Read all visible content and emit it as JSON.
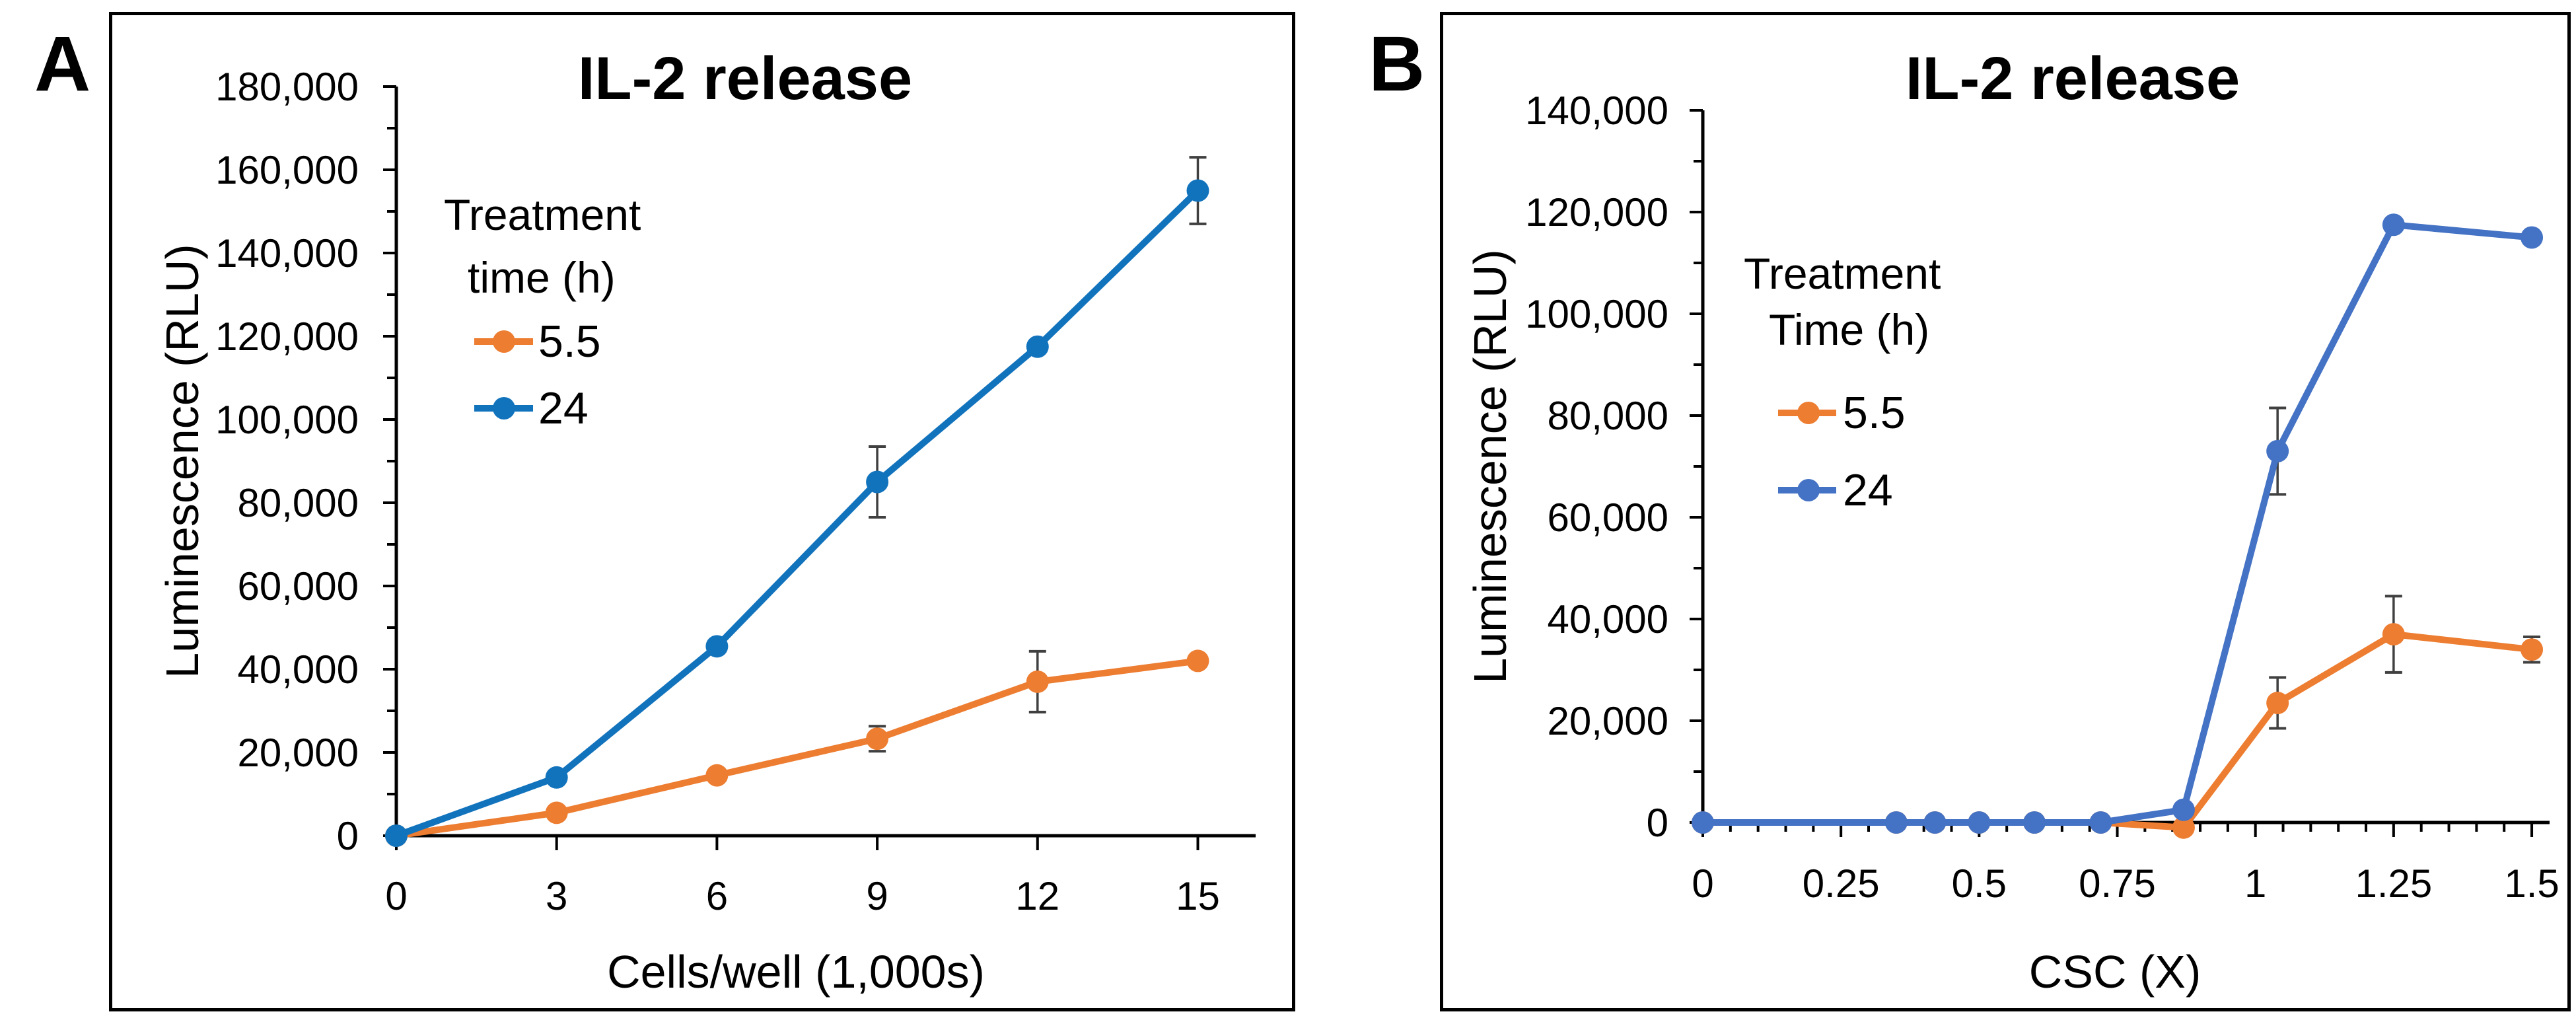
{
  "figure": {
    "background": "#ffffff",
    "panels": [
      {
        "letter": "A"
      },
      {
        "letter": "B"
      }
    ]
  },
  "chart_data": [
    {
      "type": "line",
      "panel": "A",
      "title": "IL-2 release",
      "xlabel": "Cells/well (1,000s)",
      "ylabel": "Luminescence (RLU)",
      "xlim": [
        0,
        16
      ],
      "ylim": [
        0,
        180000
      ],
      "grid": false,
      "xticks": [
        0,
        3,
        6,
        9,
        12,
        15
      ],
      "xtick_labels": [
        "0",
        "3",
        "6",
        "9",
        "12",
        "15"
      ],
      "ytick_step": 20000,
      "yminor_step": 10000,
      "ytick_labels": [
        "0",
        "20,000",
        "40,000",
        "60,000",
        "80,000",
        "100,000",
        "120,000",
        "140,000",
        "160,000",
        "180,000"
      ],
      "legend_position": "upper-left-inside",
      "legend": {
        "title_lines": [
          "Treatment",
          "time (h)"
        ],
        "marker": "circle"
      },
      "error_color": "#404040",
      "series": [
        {
          "name": "5.5",
          "color": "#ED7D31",
          "x": [
            0,
            3,
            6,
            9,
            12,
            15
          ],
          "y": [
            0,
            5500,
            14500,
            23300,
            37000,
            42000
          ],
          "yerr": [
            0,
            0,
            0,
            3000,
            7300,
            0
          ]
        },
        {
          "name": "24",
          "color": "#1273BD",
          "x": [
            0,
            3,
            6,
            9,
            12,
            15
          ],
          "y": [
            0,
            14000,
            45500,
            85000,
            117500,
            155000
          ],
          "yerr": [
            0,
            0,
            0,
            8500,
            0,
            8000
          ]
        }
      ]
    },
    {
      "type": "line",
      "panel": "B",
      "title": "IL-2 release",
      "xlabel": "CSC (X)",
      "ylabel": "Luminescence (RLU)",
      "xlim": [
        0,
        1.52
      ],
      "ylim": [
        0,
        140000
      ],
      "grid": false,
      "xticks": [
        0,
        0.25,
        0.5,
        0.75,
        1,
        1.25,
        1.5
      ],
      "xtick_labels": [
        "0",
        "0.25",
        "0.5",
        "0.75",
        "1",
        "1.25",
        "1.5"
      ],
      "xminor_step": 0.05,
      "ytick_step": 20000,
      "yminor_step": 10000,
      "ytick_labels": [
        "0",
        "20,000",
        "40,000",
        "60,000",
        "80,000",
        "100,000",
        "120,000",
        "140,000"
      ],
      "legend_position": "center-left-inside",
      "legend": {
        "title_lines": [
          "Treatment",
          "Time (h)"
        ],
        "marker": "circle"
      },
      "error_color": "#404040",
      "series": [
        {
          "name": "5.5",
          "color": "#ED7D31",
          "x": [
            0,
            0.35,
            0.42,
            0.5,
            0.6,
            0.72,
            0.87,
            1.04,
            1.25,
            1.5
          ],
          "y": [
            0,
            0,
            0,
            0,
            0,
            0,
            -1000,
            23500,
            37000,
            34000
          ],
          "yerr": [
            0,
            0,
            0,
            0,
            0,
            0,
            0,
            5000,
            7500,
            2500
          ]
        },
        {
          "name": "24",
          "color": "#4472C4",
          "x": [
            0,
            0.35,
            0.42,
            0.5,
            0.6,
            0.72,
            0.87,
            1.04,
            1.25,
            1.5
          ],
          "y": [
            0,
            0,
            0,
            0,
            0,
            0,
            2500,
            73000,
            117500,
            115000
          ],
          "yerr": [
            0,
            0,
            0,
            0,
            0,
            0,
            0,
            8500,
            0,
            0
          ]
        }
      ]
    }
  ]
}
